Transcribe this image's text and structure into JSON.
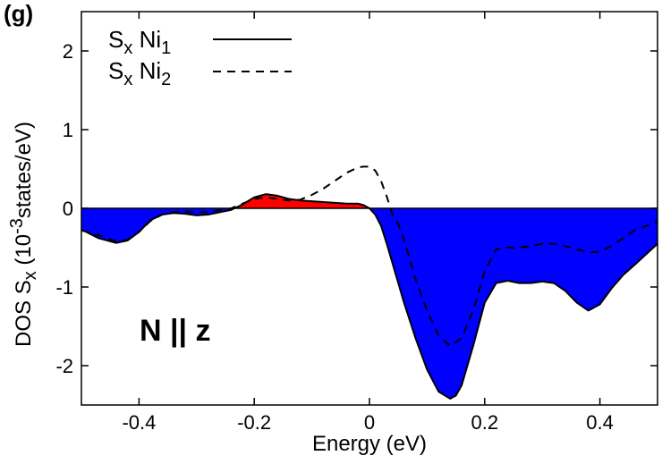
{
  "chart_data": {
    "type": "area",
    "panel_label": "(g)",
    "annotation": "N || z",
    "xlabel": "Energy (eV)",
    "ylabel": {
      "prefix": "DOS S",
      "sub": "x",
      "unit_open": "(10",
      "unit_exp": "-3",
      "unit_close": "states/eV)"
    },
    "xlim": [
      -0.5,
      0.5
    ],
    "ylim": [
      -2.5,
      2.5
    ],
    "x_ticks": [
      {
        "value": -0.4,
        "label": "-0.4"
      },
      {
        "value": -0.2,
        "label": "-0.2"
      },
      {
        "value": 0,
        "label": "0"
      },
      {
        "value": 0.2,
        "label": "0.2"
      },
      {
        "value": 0.4,
        "label": "0.4"
      }
    ],
    "y_ticks": [
      {
        "value": 2,
        "label": "2"
      },
      {
        "value": 1,
        "label": "1"
      },
      {
        "value": 0,
        "label": "0"
      },
      {
        "value": -1,
        "label": "-1"
      },
      {
        "value": -2,
        "label": "-2"
      }
    ],
    "fill_colors": {
      "positive": "#ff0000",
      "negative": "#0000ff"
    },
    "legend_position": "top-left",
    "series": [
      {
        "name": "S_x Ni_1",
        "name_parts": {
          "a": "S",
          "a_sub": "x",
          "b": "Ni",
          "b_sub": "1"
        },
        "style": "solid",
        "filled": true,
        "x": [
          -0.5,
          -0.47,
          -0.44,
          -0.42,
          -0.4,
          -0.38,
          -0.36,
          -0.34,
          -0.32,
          -0.3,
          -0.28,
          -0.26,
          -0.24,
          -0.22,
          -0.2,
          -0.18,
          -0.16,
          -0.14,
          -0.12,
          -0.1,
          -0.08,
          -0.06,
          -0.04,
          -0.02,
          -0.01,
          0.0,
          0.01,
          0.02,
          0.03,
          0.04,
          0.06,
          0.08,
          0.1,
          0.12,
          0.14,
          0.15,
          0.16,
          0.18,
          0.2,
          0.22,
          0.24,
          0.26,
          0.28,
          0.3,
          0.32,
          0.34,
          0.36,
          0.38,
          0.4,
          0.42,
          0.44,
          0.46,
          0.5
        ],
        "y": [
          -0.27,
          -0.38,
          -0.44,
          -0.41,
          -0.3,
          -0.15,
          -0.08,
          -0.06,
          -0.07,
          -0.09,
          -0.08,
          -0.05,
          -0.02,
          0.05,
          0.14,
          0.18,
          0.16,
          0.12,
          0.1,
          0.09,
          0.08,
          0.07,
          0.06,
          0.06,
          0.04,
          0.0,
          -0.08,
          -0.22,
          -0.45,
          -0.7,
          -1.2,
          -1.65,
          -2.05,
          -2.33,
          -2.42,
          -2.38,
          -2.25,
          -1.75,
          -1.2,
          -0.95,
          -0.92,
          -0.95,
          -0.95,
          -0.93,
          -0.95,
          -1.05,
          -1.2,
          -1.3,
          -1.22,
          -1.02,
          -0.85,
          -0.72,
          -0.45
        ]
      },
      {
        "name": "S_x Ni_2",
        "name_parts": {
          "a": "S",
          "a_sub": "x",
          "b": "Ni",
          "b_sub": "2"
        },
        "style": "dashed",
        "filled": false,
        "x": [
          -0.5,
          -0.47,
          -0.44,
          -0.42,
          -0.4,
          -0.38,
          -0.36,
          -0.34,
          -0.32,
          -0.3,
          -0.28,
          -0.26,
          -0.24,
          -0.22,
          -0.2,
          -0.18,
          -0.16,
          -0.14,
          -0.12,
          -0.1,
          -0.08,
          -0.06,
          -0.04,
          -0.02,
          -0.01,
          0.0,
          0.01,
          0.02,
          0.03,
          0.04,
          0.05,
          0.06,
          0.08,
          0.1,
          0.12,
          0.14,
          0.16,
          0.18,
          0.2,
          0.22,
          0.24,
          0.26,
          0.28,
          0.3,
          0.32,
          0.34,
          0.36,
          0.38,
          0.4,
          0.42,
          0.44,
          0.46,
          0.5
        ],
        "y": [
          -0.28,
          -0.34,
          -0.42,
          -0.4,
          -0.3,
          -0.16,
          -0.08,
          -0.05,
          -0.04,
          -0.05,
          -0.05,
          -0.02,
          0.0,
          0.06,
          0.12,
          0.14,
          0.12,
          0.1,
          0.11,
          0.17,
          0.25,
          0.35,
          0.45,
          0.52,
          0.53,
          0.53,
          0.48,
          0.35,
          0.15,
          -0.08,
          -0.2,
          -0.4,
          -0.9,
          -1.3,
          -1.62,
          -1.75,
          -1.65,
          -1.3,
          -0.8,
          -0.52,
          -0.5,
          -0.5,
          -0.48,
          -0.45,
          -0.45,
          -0.48,
          -0.52,
          -0.56,
          -0.55,
          -0.48,
          -0.38,
          -0.28,
          -0.17
        ]
      }
    ]
  }
}
